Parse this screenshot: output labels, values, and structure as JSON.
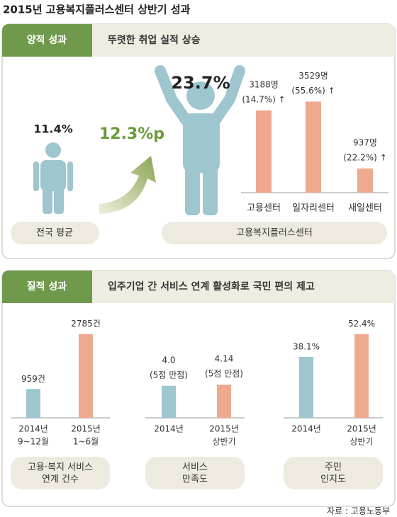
{
  "title": "2015년 고용복지플러스센터 상반기 성과",
  "quantitative": {
    "tag": "양적 성과",
    "headline": "뚜렷한 취업 실적 상승",
    "national_rate": "11.4%",
    "difference": "12.3%p",
    "center_rate": "23.7%",
    "national_label": "전국 평균",
    "center_label": "고용복지플러스센터",
    "chart": {
      "type": "bar",
      "categories": [
        "고용센터",
        "일자리센터",
        "새일센터"
      ],
      "values": [
        3188,
        3529,
        937
      ],
      "value_labels": [
        "3188명",
        "3529명",
        "937명"
      ],
      "notes": [
        "(14.7%) ↑",
        "(55.6%) ↑",
        "(22.2%) ↑"
      ],
      "color": "#eea98f",
      "ylim": [
        0,
        3900
      ]
    }
  },
  "qualitative": {
    "tag": "질적 성과",
    "headline": "입주기업 간 서비스 연계 활성화로 국민 편의 제고",
    "charts": [
      {
        "type": "bar",
        "categories": [
          [
            "2014년",
            "9~12월"
          ],
          [
            "2015년",
            "1~6월"
          ]
        ],
        "values": [
          959,
          2785
        ],
        "value_labels": [
          "959건",
          "2785건"
        ],
        "colors": [
          "#9ec6cf",
          "#eea98f"
        ],
        "ylim": [
          0,
          3060
        ],
        "caption": [
          "고용·복지 서비스",
          "연계 건수"
        ]
      },
      {
        "type": "bar",
        "categories": [
          [
            "2014년"
          ],
          [
            "2015년",
            "상반기"
          ]
        ],
        "values": [
          4.0,
          4.14
        ],
        "value_labels": [
          "4.0",
          "4.14"
        ],
        "notes": [
          "(5점 만점)",
          "(5점 만점)"
        ],
        "colors": [
          "#9ec6cf",
          "#eea98f"
        ],
        "ylim": [
          0,
          11.5
        ],
        "caption": [
          "서비스",
          "만족도"
        ]
      },
      {
        "type": "bar",
        "categories": [
          [
            "2014년"
          ],
          [
            "2015년",
            "상반기"
          ]
        ],
        "values": [
          38.1,
          52.4
        ],
        "value_labels": [
          "38.1%",
          "52.4%"
        ],
        "colors": [
          "#9ec6cf",
          "#eea98f"
        ],
        "ylim": [
          0,
          57.6
        ],
        "caption": [
          "주민",
          "인지도"
        ]
      }
    ]
  },
  "source": "자료 : 고용노동부"
}
